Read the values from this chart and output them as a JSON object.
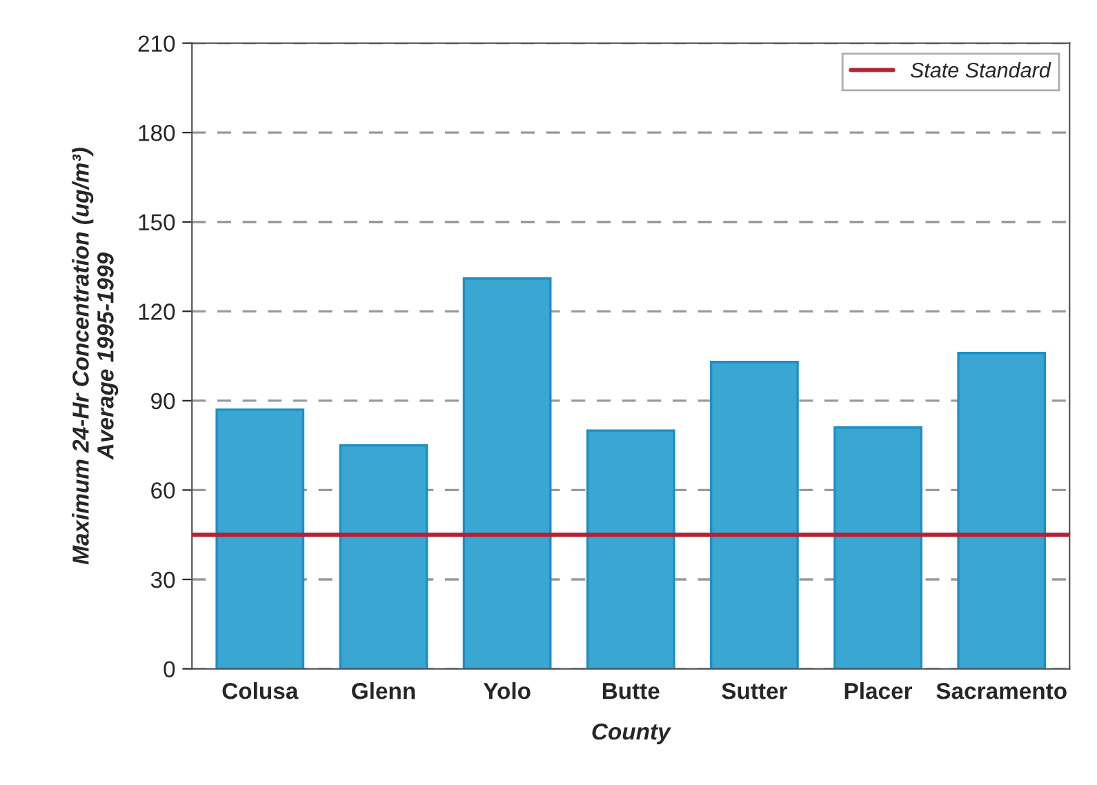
{
  "chart_data": {
    "type": "bar",
    "categories": [
      "Colusa",
      "Glenn",
      "Yolo",
      "Butte",
      "Sutter",
      "Placer",
      "Sacramento"
    ],
    "values": [
      87,
      75,
      131,
      80,
      103,
      81,
      106
    ],
    "color": "#3aa6d2",
    "xlabel": "County",
    "ylabel": "Maximum 24-Hr Concentration (ug/m³)\nAverage 1995-1999",
    "ylim": [
      0,
      210
    ],
    "yticks": [
      0,
      30,
      60,
      90,
      120,
      150,
      180,
      210
    ],
    "grid": "y",
    "legend": "top right",
    "ref_lines": [
      {
        "axis": "y",
        "value": 45,
        "label": "State Standard",
        "color": "#b22234",
        "line_style": "solid"
      }
    ]
  }
}
